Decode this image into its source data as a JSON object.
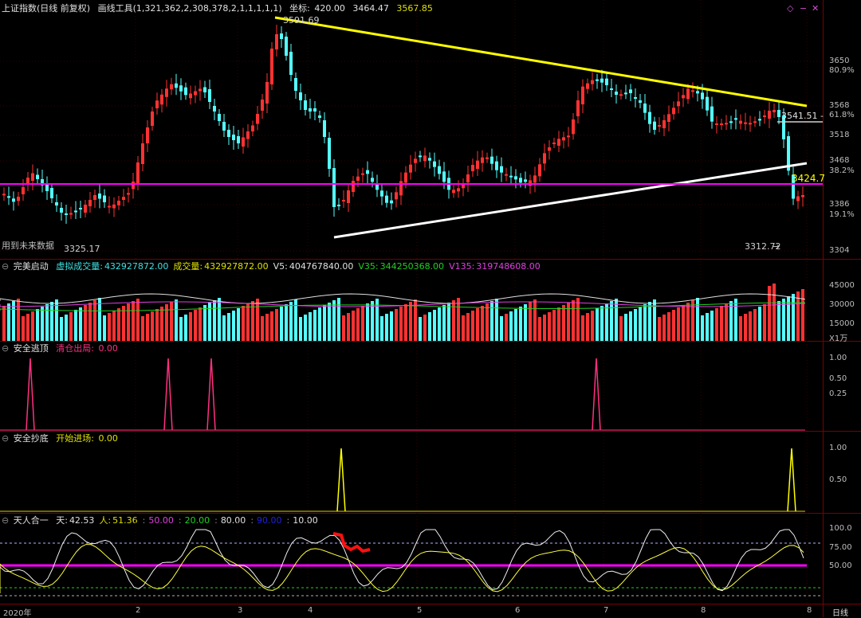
{
  "header": {
    "title": "上证指数(日线 前复权)",
    "tool_label": "画线工具(1,321,362,2,308,378,2,1,1,1,1,1)",
    "coord_label": "坐标:",
    "coord_x": "420.00",
    "coord_y": "3464.47",
    "extra_value": "3567.85"
  },
  "main_chart": {
    "annotations": {
      "peak": "3591.69",
      "low_left": "3325.17",
      "low_right": "3312.72",
      "right_price": "3541.51 -",
      "line_price": "3424.7",
      "future_data": "用到未来数据"
    },
    "y_ticks": [
      "3650",
      "3568",
      "3518",
      "3468",
      "3386",
      "3304"
    ],
    "pct_ticks": [
      "80.9%",
      "61.8%",
      "38.2%",
      "19.1%"
    ]
  },
  "volume_panel": {
    "name": "完美启动",
    "items": [
      {
        "label": "虚拟成交量:",
        "value": "432927872.00",
        "color": "#40e0e0"
      },
      {
        "label": "成交量:",
        "value": "432927872.00",
        "color": "#e0e000"
      },
      {
        "label": "V5:",
        "value": "404767840.00",
        "color": "#e0e0e0"
      },
      {
        "label": "V35:",
        "value": "344250368.00",
        "color": "#20d020"
      },
      {
        "label": "V135:",
        "value": "319748608.00",
        "color": "#e040e0"
      }
    ],
    "y_ticks": [
      "45000",
      "30000",
      "15000"
    ],
    "unit": "X1万"
  },
  "escape_panel": {
    "name": "安全逃顶",
    "signal_label": "清仓出局:",
    "signal_value": "0.00",
    "y_ticks": [
      "1.00",
      "0.50",
      "0.25"
    ]
  },
  "bottom_panel": {
    "name": "安全抄底",
    "signal_label": "开始进场:",
    "signal_value": "0.00",
    "y_ticks": [
      "1.00",
      "0.50"
    ]
  },
  "oscillator_panel": {
    "name": "天人合一",
    "items": [
      {
        "label": "天:",
        "value": "42.53",
        "color": "#e0e0e0"
      },
      {
        "label": "人:",
        "value": "51.36",
        "color": "#e0e000"
      },
      {
        "label": "",
        "value": "50.00",
        "color": "#e040e0"
      },
      {
        "label": "",
        "value": "20.00",
        "color": "#20d020"
      },
      {
        "label": "",
        "value": "80.00",
        "color": "#e0e0e0"
      },
      {
        "label": "",
        "value": "90.00",
        "color": "#2020e0"
      },
      {
        "label": "",
        "value": "10.00",
        "color": "#e0e0e0"
      }
    ],
    "y_ticks": [
      "100.0",
      "75.00",
      "50.00"
    ]
  },
  "x_axis": {
    "labels": [
      "2020年",
      "2",
      "3",
      "4",
      "5",
      "6",
      "7",
      "8"
    ],
    "period": "日线"
  },
  "colors": {
    "up": "#ff3232",
    "down": "#54ffff",
    "trend_upper": "#ffff00",
    "trend_lower": "#ffffff",
    "horizontal": "#ff00ff"
  }
}
